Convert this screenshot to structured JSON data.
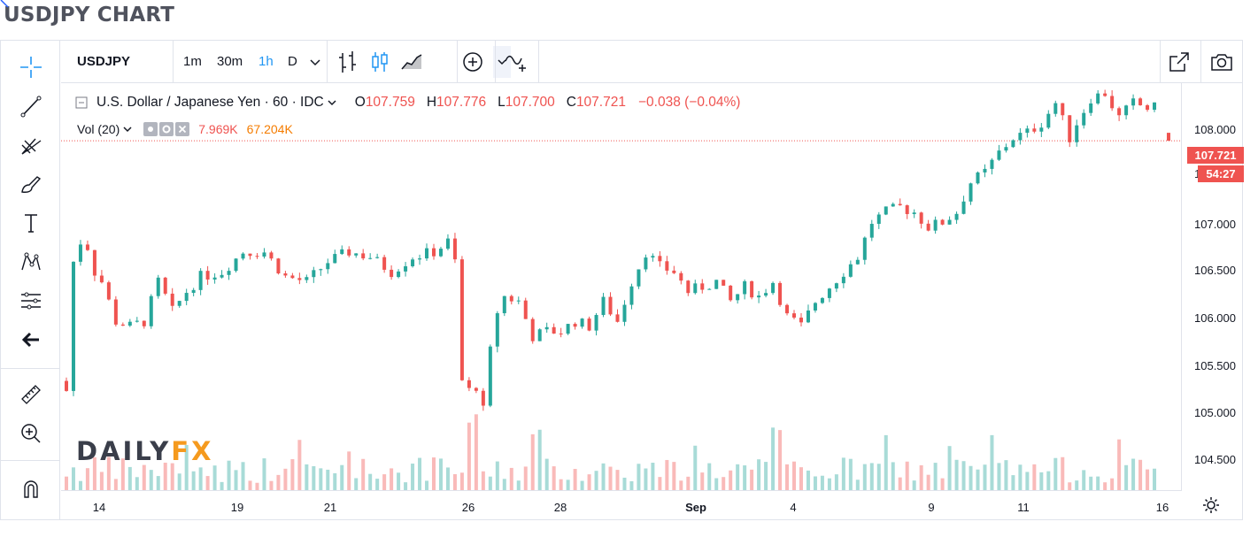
{
  "page": {
    "title": "USDJPY CHART"
  },
  "toolbar": {
    "symbol": "USDJPY",
    "intervals": [
      "1m",
      "30m",
      "1h",
      "D"
    ],
    "active_interval": "1h"
  },
  "legend": {
    "description": "U.S. Dollar / Japanese Yen · 60 · IDC",
    "open_label": "O",
    "open": "107.759",
    "high_label": "H",
    "high": "107.776",
    "low_label": "L",
    "low": "107.700",
    "close_label": "C",
    "close": "107.721",
    "change": "−0.038 (−0.04%)"
  },
  "volume": {
    "label": "Vol (20)",
    "value1": "7.969K",
    "value2": "67.204K"
  },
  "price_axis": {
    "labels": [
      "108.000",
      "107.000",
      "106.500",
      "106.000",
      "105.500",
      "105.000",
      "104.500"
    ],
    "last_price": "107.721",
    "countdown": "54:27"
  },
  "time_axis": {
    "labels": [
      "14",
      "19",
      "21",
      "26",
      "28",
      "Sep",
      "4",
      "9",
      "11",
      "16"
    ]
  },
  "watermark": {
    "part1": "DAILY",
    "part2": "FX"
  },
  "colors": {
    "up": "#26a69a",
    "down": "#ef5350",
    "accent": "#2196f3"
  },
  "chart_data": {
    "type": "candlestick",
    "title": "U.S. Dollar / Japanese Yen · 60 · IDC",
    "x_ticks": [
      "14",
      "19",
      "21",
      "26",
      "28",
      "Sep",
      "4",
      "9",
      "11",
      "16"
    ],
    "ylim": [
      104.2,
      108.3
    ],
    "close_path": [
      [
        0,
        105.3
      ],
      [
        1.5,
        105.15
      ],
      [
        2,
        106.5
      ],
      [
        3,
        106.7
      ],
      [
        4,
        106.65
      ],
      [
        5,
        106.4
      ],
      [
        6,
        106.3
      ],
      [
        8,
        105.9
      ],
      [
        10,
        105.85
      ],
      [
        12,
        105.9
      ],
      [
        14,
        106.3
      ],
      [
        16,
        106.0
      ],
      [
        18,
        106.2
      ],
      [
        20,
        106.35
      ],
      [
        23,
        106.4
      ],
      [
        26,
        106.6
      ],
      [
        29,
        106.6
      ],
      [
        32,
        106.35
      ],
      [
        35,
        106.3
      ],
      [
        38,
        106.5
      ],
      [
        41,
        106.6
      ],
      [
        44,
        106.55
      ],
      [
        47,
        106.4
      ],
      [
        50,
        106.55
      ],
      [
        53,
        106.6
      ],
      [
        55,
        106.7
      ],
      [
        56,
        106.5
      ],
      [
        57,
        105.3
      ],
      [
        58,
        105.2
      ],
      [
        59,
        105.25
      ],
      [
        60,
        105.0
      ],
      [
        61,
        105.6
      ],
      [
        62,
        106.0
      ],
      [
        63,
        106.15
      ],
      [
        65,
        106.1
      ],
      [
        67,
        105.75
      ],
      [
        69,
        105.8
      ],
      [
        71,
        105.8
      ],
      [
        73,
        105.9
      ],
      [
        75,
        105.85
      ],
      [
        77,
        106.1
      ],
      [
        79,
        105.9
      ],
      [
        81,
        106.3
      ],
      [
        83,
        106.6
      ],
      [
        85,
        106.45
      ],
      [
        87,
        106.4
      ],
      [
        89,
        106.2
      ],
      [
        91,
        106.25
      ],
      [
        93,
        106.3
      ],
      [
        95,
        106.1
      ],
      [
        97,
        106.25
      ],
      [
        99,
        106.15
      ],
      [
        101,
        106.3
      ],
      [
        103,
        105.95
      ],
      [
        105,
        105.85
      ],
      [
        107,
        106.1
      ],
      [
        109,
        106.25
      ],
      [
        111,
        106.4
      ],
      [
        113,
        106.55
      ],
      [
        115,
        106.9
      ],
      [
        117,
        107.0
      ],
      [
        119,
        107.05
      ],
      [
        121,
        107.0
      ],
      [
        123,
        106.85
      ],
      [
        125,
        106.9
      ],
      [
        127,
        107.0
      ],
      [
        129,
        107.3
      ],
      [
        131,
        107.4
      ],
      [
        133,
        107.6
      ],
      [
        135,
        107.75
      ],
      [
        137,
        107.8
      ],
      [
        139,
        107.9
      ],
      [
        141,
        108.1
      ],
      [
        143,
        107.75
      ],
      [
        144,
        107.9
      ],
      [
        146,
        108.15
      ],
      [
        148,
        108.2
      ],
      [
        150,
        107.95
      ],
      [
        152,
        108.1
      ],
      [
        154,
        108.05
      ]
    ],
    "last_gap_close": 107.72
  }
}
